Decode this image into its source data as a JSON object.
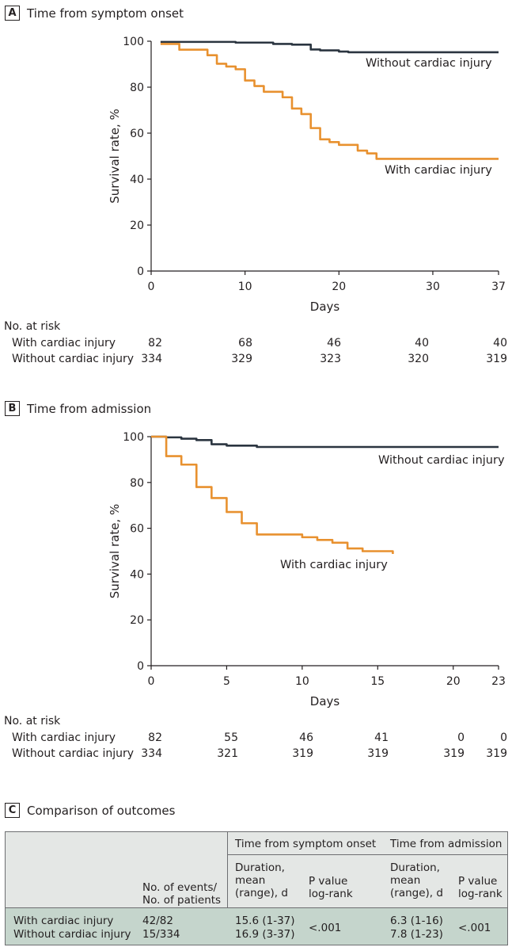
{
  "panels": {
    "a": {
      "letter": "A",
      "title": "Time from symptom onset"
    },
    "b": {
      "letter": "B",
      "title": "Time from admission"
    },
    "c": {
      "letter": "C",
      "title": "Comparison of outcomes"
    }
  },
  "chart_data": [
    {
      "type": "line",
      "panel": "A",
      "title": "Time from symptom onset",
      "xlabel": "Days",
      "ylabel": "Survival rate, %",
      "xlim": [
        0,
        37
      ],
      "ylim": [
        0,
        100
      ],
      "xticks": [
        0,
        10,
        20,
        30,
        37
      ],
      "yticks": [
        0,
        20,
        40,
        60,
        80,
        100
      ],
      "series": [
        {
          "name": "Without cardiac injury",
          "color": "#2b3540",
          "points": [
            [
              1,
              99.7
            ],
            [
              7,
              99.7
            ],
            [
              9,
              99.4
            ],
            [
              12,
              99.4
            ],
            [
              13,
              98.8
            ],
            [
              15,
              98.5
            ],
            [
              17,
              96.4
            ],
            [
              18,
              96
            ],
            [
              19,
              96
            ],
            [
              20,
              95.5
            ],
            [
              21,
              95.2
            ],
            [
              37,
              95.2
            ]
          ]
        },
        {
          "name": "With cardiac injury",
          "color": "#e8912f",
          "points": [
            [
              1,
              98.8
            ],
            [
              2,
              98.8
            ],
            [
              3,
              96.3
            ],
            [
              4,
              96.3
            ],
            [
              6,
              93.9
            ],
            [
              7,
              90.2
            ],
            [
              8,
              89
            ],
            [
              9,
              87.8
            ],
            [
              10,
              82.9
            ],
            [
              11,
              80.5
            ],
            [
              12,
              78
            ],
            [
              14,
              75.6
            ],
            [
              15,
              70.7
            ],
            [
              16,
              68.3
            ],
            [
              17,
              62.2
            ],
            [
              18,
              57.3
            ],
            [
              19,
              56.1
            ],
            [
              20,
              54.9
            ],
            [
              21,
              54.9
            ],
            [
              22,
              52.4
            ],
            [
              23,
              51.2
            ],
            [
              24,
              48.8
            ],
            [
              37,
              48.8
            ]
          ]
        }
      ],
      "at_risk": {
        "label": "No. at risk",
        "rows": [
          {
            "name": "With cardiac injury",
            "values": [
              "82",
              "68",
              "46",
              "40",
              "40"
            ]
          },
          {
            "name": "Without cardiac injury",
            "values": [
              "334",
              "329",
              "323",
              "320",
              "319"
            ]
          }
        ]
      }
    },
    {
      "type": "line",
      "panel": "B",
      "title": "Time from admission",
      "xlabel": "Days",
      "ylabel": "Survival rate, %",
      "xlim": [
        0,
        23
      ],
      "ylim": [
        0,
        100
      ],
      "xticks": [
        0,
        5,
        10,
        15,
        20,
        23
      ],
      "yticks": [
        0,
        20,
        40,
        60,
        80,
        100
      ],
      "series": [
        {
          "name": "Without cardiac injury",
          "color": "#2b3540",
          "points": [
            [
              0,
              100
            ],
            [
              1,
              99.7
            ],
            [
              2,
              99.1
            ],
            [
              3,
              98.5
            ],
            [
              4,
              96.7
            ],
            [
              5,
              96.1
            ],
            [
              6,
              96.1
            ],
            [
              7,
              95.5
            ],
            [
              23,
              95.5
            ]
          ]
        },
        {
          "name": "With cardiac injury",
          "color": "#e8912f",
          "points": [
            [
              0,
              100
            ],
            [
              1,
              91.5
            ],
            [
              2,
              87.8
            ],
            [
              3,
              78
            ],
            [
              4,
              73.2
            ],
            [
              5,
              67.1
            ],
            [
              6,
              62.2
            ],
            [
              7,
              57.3
            ],
            [
              9,
              57.3
            ],
            [
              10,
              56.1
            ],
            [
              11,
              54.9
            ],
            [
              12,
              53.7
            ],
            [
              13,
              51.2
            ],
            [
              14,
              50
            ],
            [
              15,
              50
            ],
            [
              16,
              48.8
            ]
          ]
        }
      ],
      "at_risk": {
        "label": "No. at risk",
        "rows": [
          {
            "name": "With cardiac injury",
            "values": [
              "82",
              "55",
              "46",
              "41",
              "0",
              "0"
            ]
          },
          {
            "name": "Without cardiac injury",
            "values": [
              "334",
              "321",
              "319",
              "319",
              "319",
              "319"
            ]
          }
        ]
      }
    },
    {
      "type": "table",
      "panel": "C",
      "title": "Comparison of outcomes",
      "group_headers": [
        "Time from symptom onset",
        "Time from admission"
      ],
      "columns": [
        "No. of events/\nNo. of patients",
        "Duration,\nmean\n(range), d",
        "P value\nlog-rank",
        "Duration,\nmean\n(range), d",
        "P value\nlog-rank"
      ],
      "rows": [
        {
          "name": "With cardiac injury",
          "events": "42/82",
          "onset_duration": "15.6 (1-37)",
          "admission_duration": "6.3 (1-16)"
        },
        {
          "name": "Without cardiac injury",
          "events": "15/334",
          "onset_duration": "16.9 (3-37)",
          "admission_duration": "7.8 (1-23)"
        }
      ],
      "p_values": {
        "onset": "<.001",
        "admission": "<.001"
      }
    }
  ],
  "colors": {
    "dark": "#2b3540",
    "orange": "#e8912f",
    "table_fill": "#c5d5cc",
    "table_header_fill": "#e4e7e5"
  }
}
